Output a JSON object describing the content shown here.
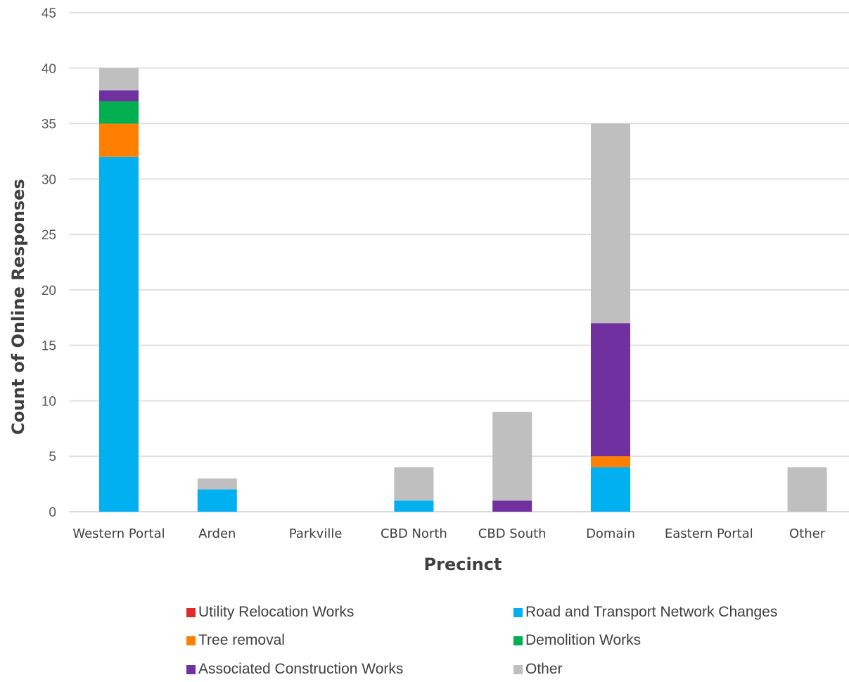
{
  "chart_data": {
    "type": "bar",
    "stacked": true,
    "xlabel": "Precinct",
    "ylabel": "Count of Online Responses",
    "ylim": [
      0,
      45
    ],
    "yticks": [
      0,
      5,
      10,
      15,
      20,
      25,
      30,
      35,
      40,
      45
    ],
    "grid": true,
    "legend_position": "bottom",
    "categories": [
      "Western Portal",
      "Arden",
      "Parkville",
      "CBD North",
      "CBD South",
      "Domain",
      "Eastern Portal",
      "Other"
    ],
    "series": [
      {
        "name": "Utility Relocation Works",
        "color": "#e02b2b",
        "values": [
          0,
          0,
          0,
          0,
          0,
          0,
          0,
          0
        ]
      },
      {
        "name": "Road and Transport Network Changes",
        "color": "#00b0f0",
        "values": [
          32,
          2,
          0,
          1,
          0,
          4,
          0,
          0
        ]
      },
      {
        "name": "Tree removal",
        "color": "#ff7f00",
        "values": [
          3,
          0,
          0,
          0,
          0,
          1,
          0,
          0
        ]
      },
      {
        "name": "Demolition Works",
        "color": "#00b050",
        "values": [
          2,
          0,
          0,
          0,
          0,
          0,
          0,
          0
        ]
      },
      {
        "name": "Associated Construction Works",
        "color": "#7030a0",
        "values": [
          1,
          0,
          0,
          0,
          1,
          12,
          0,
          0
        ]
      },
      {
        "name": "Other",
        "color": "#bfbfbf",
        "values": [
          2,
          1,
          0,
          3,
          8,
          18,
          0,
          4
        ]
      }
    ]
  }
}
